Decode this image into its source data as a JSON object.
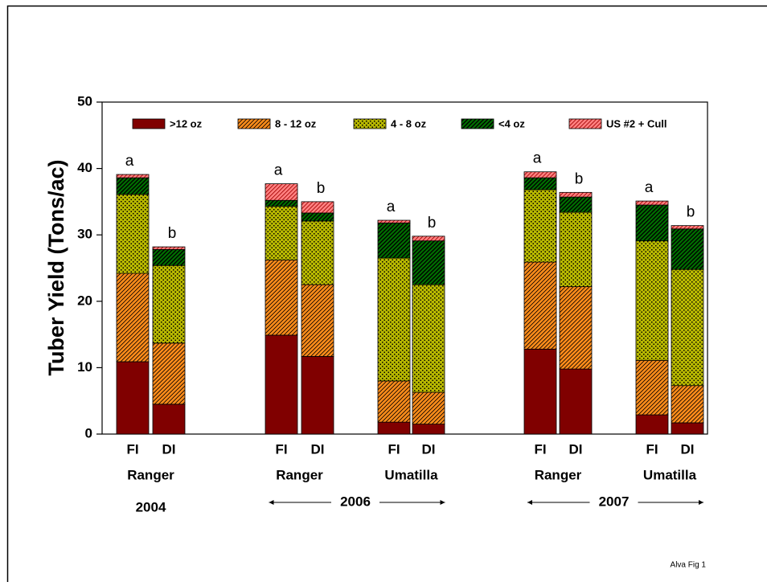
{
  "chart_data": {
    "type": "stacked-bar",
    "ylabel": "Tuber Yield (Tons/ac)",
    "categories": [
      "FI",
      "DI",
      "FI",
      "DI",
      "FI",
      "DI",
      "FI",
      "DI",
      "FI",
      "DI"
    ],
    "series": [
      {
        "name": ">12 oz",
        "color": "#800000",
        "values": [
          10.9,
          4.5,
          14.9,
          11.7,
          1.8,
          1.5,
          12.8,
          9.8,
          2.9,
          1.7
        ]
      },
      {
        "name": "8 - 12 oz",
        "color": "#ff8c1a",
        "values": [
          13.3,
          9.2,
          11.3,
          10.8,
          6.2,
          4.8,
          13.1,
          12.4,
          8.2,
          5.6
        ]
      },
      {
        "name": "4 - 8 oz",
        "color": "#b8b800",
        "values": [
          11.9,
          11.7,
          8.1,
          9.6,
          18.5,
          16.2,
          10.9,
          11.2,
          18.0,
          17.5
        ]
      },
      {
        "name": "<4 oz",
        "color": "#007000",
        "values": [
          2.5,
          2.4,
          0.9,
          1.2,
          5.3,
          6.6,
          1.8,
          2.3,
          5.4,
          6.1
        ]
      },
      {
        "name": "US #2 + Cull",
        "color": "#ff8080",
        "values": [
          0.5,
          0.4,
          2.5,
          1.7,
          0.4,
          0.7,
          0.9,
          0.7,
          0.6,
          0.5
        ]
      }
    ],
    "bar_labels": [
      "a",
      "b",
      "a",
      "b",
      "a",
      "b",
      "a",
      "b",
      "a",
      "b"
    ],
    "group_labels": [
      "Ranger",
      "Ranger",
      "Umatilla",
      "Ranger",
      "Umatilla"
    ],
    "year_labels": [
      "2004",
      "2006",
      "2007"
    ],
    "ylim": [
      0,
      50
    ],
    "yticks": [
      0,
      10,
      20,
      30,
      40,
      50
    ],
    "footer": "Alva Fig 1"
  }
}
